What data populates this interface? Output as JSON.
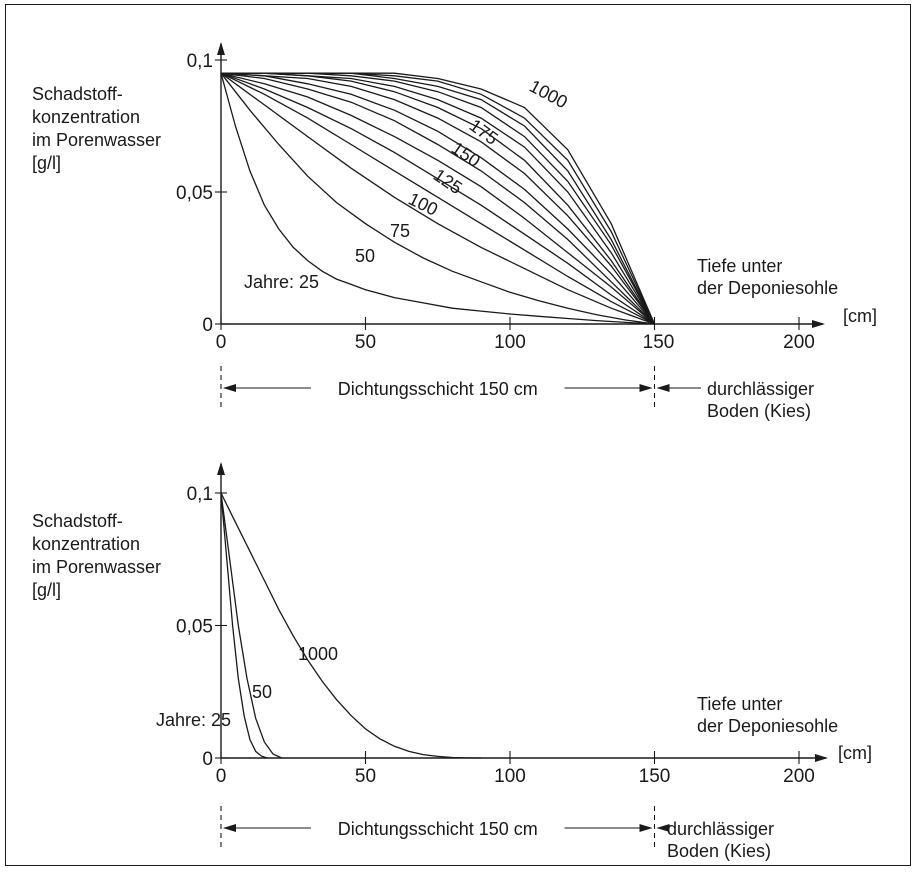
{
  "chart_data": [
    {
      "type": "line",
      "ylabel": [
        "Schadstoff-",
        "konzentration",
        "im Porenwasser",
        "[g/l]"
      ],
      "xlabel": [
        "Tiefe unter",
        "der Deponiesohle"
      ],
      "xunit": "[cm]",
      "xlim": [
        0,
        210
      ],
      "ylim": [
        0,
        0.1
      ],
      "xticks": [
        0,
        50,
        100,
        150,
        200
      ],
      "xtick_labels": [
        "0",
        "50",
        "100",
        "150",
        "200"
      ],
      "yticks": [
        0,
        0.05,
        0.1
      ],
      "ytick_labels": [
        "0",
        "0,05",
        "0,1"
      ],
      "series_prefix": "Jahre:",
      "layer_label": "Dichtungsschicht 150 cm",
      "soil_label": [
        "durchlässiger",
        "Boden (Kies)"
      ],
      "series": [
        {
          "name": "25",
          "x": [
            0,
            5,
            10,
            15,
            20,
            25,
            30,
            35,
            40,
            45,
            50,
            60,
            70,
            80,
            90,
            100,
            110,
            120,
            130,
            140,
            150
          ],
          "y": [
            0.095,
            0.075,
            0.058,
            0.045,
            0.036,
            0.029,
            0.024,
            0.02,
            0.017,
            0.015,
            0.013,
            0.01,
            0.008,
            0.006,
            0.0049,
            0.0038,
            0.0029,
            0.0021,
            0.0013,
            0.0006,
            0
          ]
        },
        {
          "name": "50",
          "x": [
            0,
            10,
            20,
            30,
            40,
            50,
            60,
            70,
            80,
            90,
            100,
            110,
            120,
            130,
            140,
            150
          ],
          "y": [
            0.095,
            0.081,
            0.068,
            0.056,
            0.046,
            0.038,
            0.031,
            0.025,
            0.02,
            0.016,
            0.012,
            0.0088,
            0.006,
            0.0035,
            0.0015,
            0
          ]
        },
        {
          "name": "75",
          "x": [
            0,
            15,
            30,
            45,
            60,
            75,
            90,
            105,
            120,
            135,
            150
          ],
          "y": [
            0.095,
            0.083,
            0.071,
            0.059,
            0.048,
            0.038,
            0.029,
            0.021,
            0.013,
            0.006,
            0
          ]
        },
        {
          "name": "100",
          "x": [
            0,
            15,
            30,
            45,
            60,
            75,
            90,
            105,
            120,
            135,
            150
          ],
          "y": [
            0.095,
            0.087,
            0.078,
            0.068,
            0.058,
            0.048,
            0.038,
            0.028,
            0.018,
            0.0085,
            0
          ]
        },
        {
          "name": "125",
          "x": [
            0,
            15,
            30,
            45,
            60,
            75,
            90,
            105,
            120,
            135,
            150
          ],
          "y": [
            0.095,
            0.089,
            0.082,
            0.074,
            0.065,
            0.055,
            0.045,
            0.034,
            0.023,
            0.011,
            0
          ]
        },
        {
          "name": "150",
          "x": [
            0,
            15,
            30,
            45,
            60,
            75,
            90,
            105,
            120,
            135,
            150
          ],
          "y": [
            0.095,
            0.091,
            0.086,
            0.079,
            0.071,
            0.062,
            0.052,
            0.04,
            0.027,
            0.014,
            0
          ]
        },
        {
          "name": "175",
          "x": [
            0,
            15,
            30,
            45,
            60,
            75,
            90,
            105,
            120,
            135,
            150
          ],
          "y": [
            0.095,
            0.093,
            0.089,
            0.084,
            0.077,
            0.068,
            0.058,
            0.046,
            0.032,
            0.016,
            0
          ]
        },
        {
          "name": "",
          "x": [
            0,
            15,
            30,
            45,
            60,
            75,
            90,
            105,
            120,
            135,
            150
          ],
          "y": [
            0.095,
            0.094,
            0.091,
            0.087,
            0.081,
            0.073,
            0.063,
            0.051,
            0.036,
            0.019,
            0
          ]
        },
        {
          "name": "",
          "x": [
            0,
            15,
            30,
            45,
            60,
            75,
            90,
            105,
            120,
            135,
            150
          ],
          "y": [
            0.095,
            0.094,
            0.093,
            0.09,
            0.085,
            0.078,
            0.069,
            0.057,
            0.041,
            0.022,
            0
          ]
        },
        {
          "name": "",
          "x": [
            0,
            15,
            30,
            45,
            60,
            75,
            90,
            105,
            120,
            135,
            150
          ],
          "y": [
            0.095,
            0.095,
            0.094,
            0.092,
            0.088,
            0.082,
            0.074,
            0.062,
            0.045,
            0.024,
            0
          ]
        },
        {
          "name": "",
          "x": [
            0,
            15,
            30,
            45,
            60,
            75,
            90,
            105,
            120,
            135,
            150
          ],
          "y": [
            0.095,
            0.095,
            0.094,
            0.093,
            0.09,
            0.085,
            0.078,
            0.067,
            0.05,
            0.027,
            0
          ]
        },
        {
          "name": "",
          "x": [
            0,
            15,
            30,
            45,
            60,
            75,
            90,
            105,
            120,
            135,
            150
          ],
          "y": [
            0.095,
            0.095,
            0.095,
            0.094,
            0.092,
            0.088,
            0.082,
            0.071,
            0.054,
            0.03,
            0
          ]
        },
        {
          "name": "",
          "x": [
            0,
            15,
            30,
            45,
            60,
            75,
            90,
            105,
            120,
            135,
            150
          ],
          "y": [
            0.095,
            0.095,
            0.095,
            0.095,
            0.093,
            0.09,
            0.085,
            0.075,
            0.058,
            0.032,
            0
          ]
        },
        {
          "name": "",
          "x": [
            0,
            15,
            30,
            45,
            60,
            75,
            90,
            105,
            120,
            135,
            150
          ],
          "y": [
            0.095,
            0.095,
            0.095,
            0.095,
            0.094,
            0.092,
            0.087,
            0.078,
            0.062,
            0.035,
            0
          ]
        },
        {
          "name": "1000",
          "x": [
            0,
            15,
            30,
            45,
            60,
            75,
            90,
            105,
            120,
            135,
            150
          ],
          "y": [
            0.095,
            0.095,
            0.095,
            0.095,
            0.095,
            0.093,
            0.089,
            0.082,
            0.066,
            0.038,
            0
          ]
        }
      ]
    },
    {
      "type": "line",
      "ylabel": [
        "Schadstoff-",
        "konzentration",
        "im Porenwasser",
        "[g/l]"
      ],
      "xlabel": [
        "Tiefe unter",
        "der Deponiesohle"
      ],
      "xunit": "[cm]",
      "xlim": [
        0,
        210
      ],
      "ylim": [
        0,
        0.1
      ],
      "xticks": [
        0,
        50,
        100,
        150,
        200
      ],
      "xtick_labels": [
        "0",
        "50",
        "100",
        "150",
        "200"
      ],
      "yticks": [
        0,
        0.05,
        0.1
      ],
      "ytick_labels": [
        "0",
        "0,05",
        "0,1"
      ],
      "series_prefix": "Jahre:",
      "layer_label": "Dichtungsschicht 150 cm",
      "soil_label": [
        "durchlässiger",
        "Boden (Kies)"
      ],
      "series": [
        {
          "name": "25",
          "x": [
            0,
            2,
            4,
            6,
            8,
            10,
            12,
            14,
            16
          ],
          "y": [
            0.1,
            0.075,
            0.05,
            0.03,
            0.016,
            0.007,
            0.0025,
            0.0007,
            0
          ]
        },
        {
          "name": "50",
          "x": [
            0,
            3,
            6,
            9,
            12,
            15,
            18,
            21
          ],
          "y": [
            0.1,
            0.075,
            0.05,
            0.03,
            0.015,
            0.006,
            0.0015,
            0
          ]
        },
        {
          "name": "1000",
          "x": [
            0,
            5,
            10,
            15,
            20,
            25,
            30,
            35,
            40,
            45,
            50,
            55,
            60,
            65,
            70,
            75,
            80,
            85,
            90
          ],
          "y": [
            0.1,
            0.089,
            0.078,
            0.067,
            0.056,
            0.046,
            0.037,
            0.029,
            0.022,
            0.016,
            0.011,
            0.0072,
            0.0044,
            0.0025,
            0.0013,
            0.0006,
            0.0002,
            5e-05,
            0
          ]
        }
      ]
    }
  ]
}
